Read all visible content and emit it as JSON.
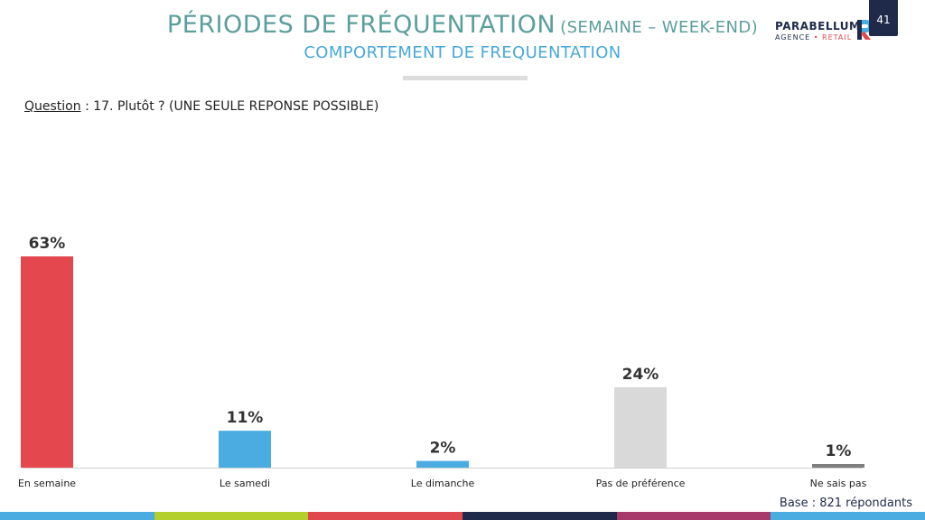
{
  "header": {
    "title_main": "PÉRIODES DE FRÉQUENTATION",
    "title_suffix": "(SEMAINE – WEEK-END)",
    "subtitle": "COMPORTEMENT DE FREQUENTATION",
    "logo_name": "PARABELLUM",
    "logo_tag_left": "AGENCE",
    "logo_tag_sep": " • ",
    "logo_tag_right": "RETAIL",
    "page_number": "41"
  },
  "question": {
    "label": "Question",
    "text": " : 17. Plutôt ? (UNE SEULE REPONSE POSSIBLE)"
  },
  "footer": {
    "base": "Base : 821 répondants",
    "stripe_colors": [
      "#4aace0",
      "#b3cf2b",
      "#e0484f",
      "#1f2a4a",
      "#a83a6b",
      "#4aace0"
    ]
  },
  "chart_data": {
    "type": "bar",
    "categories": [
      "En semaine",
      "Le samedi",
      "Le dimanche",
      "Pas de préférence",
      "Ne sais pas"
    ],
    "values": [
      63,
      11,
      2,
      24,
      1
    ],
    "value_labels": [
      "63%",
      "11%",
      "2%",
      "24%",
      "1%"
    ],
    "colors": [
      "#e5474f",
      "#4aace0",
      "#4aace0",
      "#d9d9d9",
      "#7f7f7f"
    ],
    "ylim": [
      0,
      63
    ],
    "grid": false,
    "legend": "none"
  }
}
